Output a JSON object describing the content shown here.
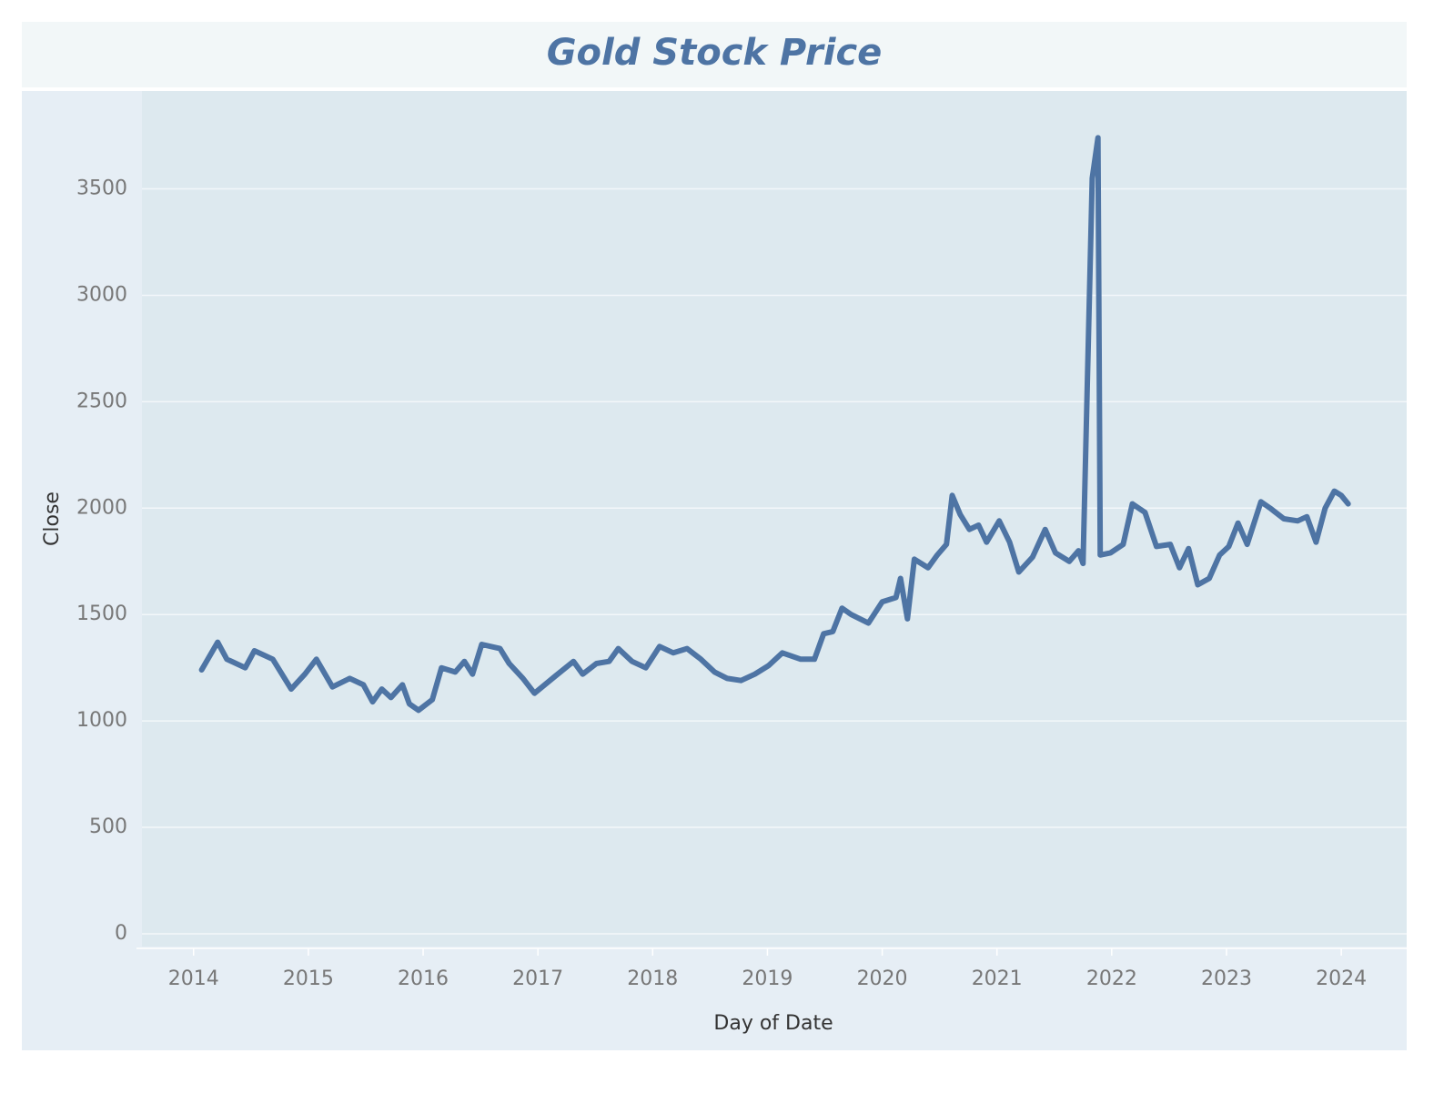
{
  "chart_data": {
    "type": "line",
    "title": "Gold Stock Price",
    "x_label": "Day of Date",
    "y_label": "Close",
    "x": [
      2014.07,
      2014.21,
      2014.29,
      2014.45,
      2014.53,
      2014.69,
      2014.85,
      2014.97,
      2015.07,
      2015.21,
      2015.36,
      2015.48,
      2015.56,
      2015.64,
      2015.72,
      2015.82,
      2015.88,
      2015.96,
      2016.08,
      2016.16,
      2016.28,
      2016.36,
      2016.43,
      2016.51,
      2016.67,
      2016.75,
      2016.87,
      2016.97,
      2017.15,
      2017.31,
      2017.39,
      2017.51,
      2017.62,
      2017.7,
      2017.82,
      2017.94,
      2018.06,
      2018.18,
      2018.3,
      2018.42,
      2018.54,
      2018.65,
      2018.77,
      2018.89,
      2019.01,
      2019.13,
      2019.29,
      2019.41,
      2019.49,
      2019.57,
      2019.65,
      2019.73,
      2019.88,
      2020.0,
      2020.12,
      2020.16,
      2020.22,
      2020.28,
      2020.4,
      2020.48,
      2020.56,
      2020.61,
      2020.68,
      2020.76,
      2020.84,
      2020.91,
      2021.02,
      2021.11,
      2021.19,
      2021.31,
      2021.42,
      2021.51,
      2021.63,
      2021.71,
      2021.75,
      2021.83,
      2021.88,
      2021.9,
      2021.99,
      2022.1,
      2022.18,
      2022.29,
      2022.39,
      2022.51,
      2022.59,
      2022.67,
      2022.75,
      2022.85,
      2022.94,
      2023.02,
      2023.1,
      2023.18,
      2023.3,
      2023.38,
      2023.5,
      2023.62,
      2023.7,
      2023.78,
      2023.86,
      2023.94,
      2024.0,
      2024.06
    ],
    "series": [
      {
        "name": "Close",
        "color": "#4e74a4",
        "values": [
          1240,
          1370,
          1290,
          1250,
          1330,
          1290,
          1150,
          1220,
          1290,
          1160,
          1200,
          1170,
          1090,
          1150,
          1110,
          1170,
          1080,
          1050,
          1100,
          1250,
          1230,
          1280,
          1220,
          1360,
          1340,
          1270,
          1200,
          1130,
          1210,
          1280,
          1220,
          1270,
          1280,
          1340,
          1280,
          1250,
          1350,
          1320,
          1340,
          1290,
          1230,
          1200,
          1190,
          1220,
          1260,
          1320,
          1290,
          1290,
          1410,
          1420,
          1530,
          1500,
          1460,
          1560,
          1580,
          1670,
          1480,
          1760,
          1720,
          1780,
          1830,
          2060,
          1970,
          1900,
          1920,
          1840,
          1940,
          1840,
          1700,
          1770,
          1900,
          1790,
          1750,
          1800,
          1740,
          3550,
          3740,
          1780,
          1790,
          1830,
          2020,
          1980,
          1820,
          1830,
          1720,
          1810,
          1640,
          1670,
          1780,
          1820,
          1930,
          1830,
          2030,
          2000,
          1950,
          1940,
          1960,
          1840,
          2000,
          2080,
          2060,
          2020
        ]
      }
    ],
    "xlim": [
      2013.55,
      2024.57
    ],
    "xticks": [
      2014,
      2015,
      2016,
      2017,
      2018,
      2019,
      2020,
      2021,
      2022,
      2023,
      2024
    ],
    "ylim": [
      -60,
      3960
    ],
    "yticks": [
      0,
      500,
      1000,
      1500,
      2000,
      2500,
      3000,
      3500
    ],
    "grid": true
  }
}
